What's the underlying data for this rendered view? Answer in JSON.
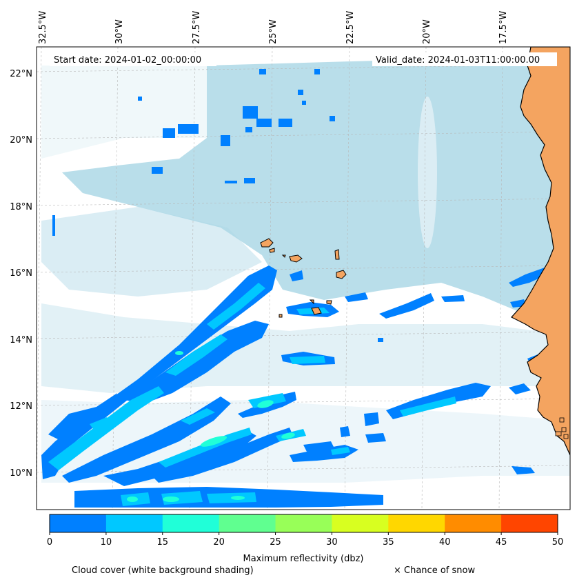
{
  "map": {
    "start_label": "Start date: 2024-01-02_00:00:00",
    "valid_label": "Valid_date: 2024-01-03T11:00:00.00",
    "lon_labels": [
      "32.5°W",
      "30°W",
      "27.5°W",
      "25°W",
      "22.5°W",
      "20°W",
      "17.5°W"
    ],
    "lat_labels": [
      "22°N",
      "20°N",
      "18°N",
      "16°N",
      "14°N",
      "12°N",
      "10°N"
    ],
    "gridlines": true,
    "colors": {
      "ocean_cloud": "#add8e6",
      "land": "#f4a460",
      "reflectivity_0_10": "#0080ff",
      "reflectivity_10_15": "#00c8ff",
      "reflectivity_15_20": "#20ffd8"
    }
  },
  "colorbar": {
    "title": "Maximum reflectivity (dbz)",
    "ticks": [
      "0",
      "10",
      "15",
      "20",
      "25",
      "30",
      "35",
      "40",
      "45",
      "50"
    ],
    "colors": [
      "#0080ff",
      "#00c8ff",
      "#20ffd8",
      "#60ff90",
      "#98ff58",
      "#d8ff20",
      "#ffd700",
      "#ff8c00",
      "#ff4500"
    ]
  },
  "footer": {
    "cloud_cover_label": "Cloud cover (white background shading)",
    "snow_label": "× Chance of snow"
  }
}
